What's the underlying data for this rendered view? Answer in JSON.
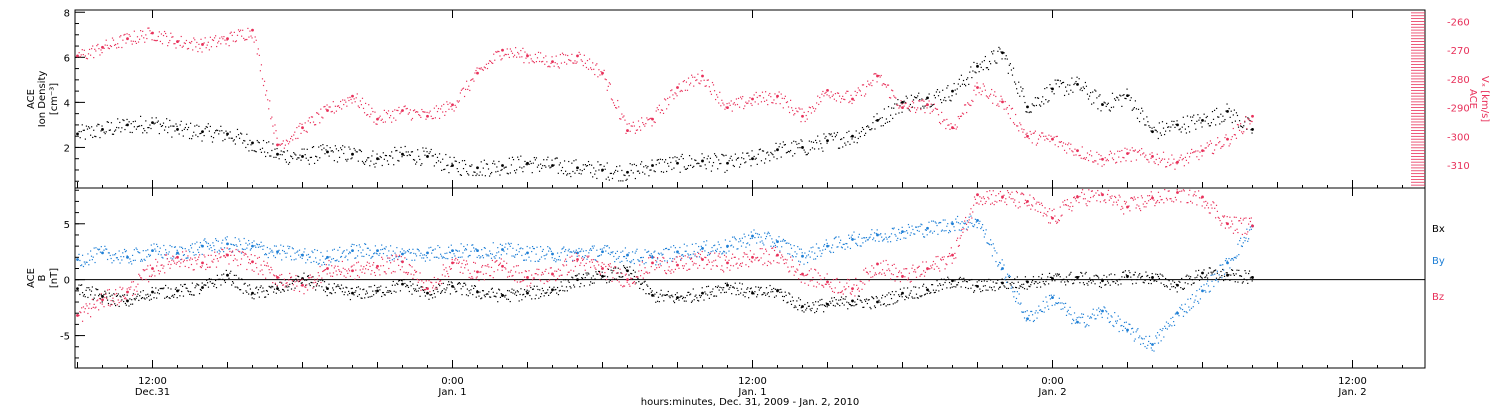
{
  "chart_data": [
    {
      "type": "scatter",
      "panel": "top",
      "xlabel": "hours:minutes, Dec. 31, 2009 - Jan. 2, 2010",
      "x_ticks": [
        {
          "time": "12:00",
          "date": "Dec.31",
          "hours": 12
        },
        {
          "time": "0:00",
          "date": "Jan. 1",
          "hours": 24
        },
        {
          "time": "12:00",
          "date": "Jan. 1",
          "hours": 36
        },
        {
          "time": "0:00",
          "date": "Jan. 2",
          "hours": 48
        },
        {
          "time": "12:00",
          "date": "Jan. 2",
          "hours": 60
        }
      ],
      "xlim": [
        8.9,
        62.9
      ],
      "y_left": {
        "label_lines": [
          "ACE",
          "Ion Density",
          "[cm⁻³]"
        ],
        "ticks": [
          2,
          4,
          6,
          8
        ],
        "ylim": [
          0.2,
          8.1
        ]
      },
      "y_right": {
        "label_lines": [
          "ACE",
          "Vₓ [km/s]"
        ],
        "ticks": [
          -260,
          -270,
          -280,
          -290,
          -300,
          -310
        ],
        "ylim": [
          -318,
          -256
        ]
      },
      "series": [
        {
          "axis": "left",
          "color": "#000000",
          "x": [
            9,
            10,
            11,
            12,
            13,
            14,
            15,
            16,
            17,
            18,
            19,
            20,
            21,
            22,
            23,
            24,
            25,
            26,
            27,
            28,
            29,
            30,
            31,
            32,
            33,
            34,
            35,
            36,
            37,
            38,
            39,
            40,
            41,
            42,
            43,
            44,
            45,
            46,
            47,
            48,
            49,
            50,
            51,
            52,
            53,
            54,
            55,
            56
          ],
          "y": [
            2.6,
            2.8,
            3.0,
            3.1,
            2.8,
            2.7,
            2.6,
            2.2,
            1.7,
            1.6,
            1.8,
            1.7,
            1.5,
            1.7,
            1.6,
            1.2,
            1.1,
            1.2,
            1.3,
            1.2,
            1.1,
            1.0,
            0.9,
            1.2,
            1.3,
            1.4,
            1.3,
            1.5,
            1.9,
            2.0,
            2.3,
            2.5,
            3.2,
            4.0,
            4.2,
            4.5,
            5.6,
            6.2,
            3.8,
            4.6,
            4.8,
            3.9,
            4.3,
            2.7,
            3.0,
            3.2,
            3.6,
            2.8
          ]
        },
        {
          "axis": "right",
          "color": "#e8305a",
          "x": [
            9,
            10,
            11,
            12,
            13,
            14,
            15,
            16,
            17,
            18,
            19,
            20,
            21,
            22,
            23,
            24,
            25,
            26,
            27,
            28,
            29,
            30,
            31,
            32,
            33,
            34,
            35,
            36,
            37,
            38,
            39,
            40,
            41,
            42,
            43,
            44,
            45,
            46,
            47,
            48,
            49,
            50,
            51,
            52,
            53,
            54,
            55,
            56
          ],
          "y": [
            -272,
            -269,
            -266,
            -264,
            -267,
            -268,
            -266,
            -263,
            -303,
            -297,
            -291,
            -286,
            -294,
            -291,
            -293,
            -289,
            -278,
            -270,
            -272,
            -274,
            -272,
            -278,
            -298,
            -294,
            -283,
            -279,
            -290,
            -287,
            -286,
            -293,
            -284,
            -287,
            -279,
            -290,
            -289,
            -297,
            -283,
            -288,
            -300,
            -301,
            -305,
            -308,
            -306,
            -307,
            -309,
            -305,
            -301,
            -293
          ]
        }
      ]
    },
    {
      "type": "scatter",
      "panel": "bottom",
      "xlim": [
        8.9,
        62.9
      ],
      "y_left": {
        "label_lines": [
          "ACE",
          "B",
          "[nT]"
        ],
        "ticks": [
          -5,
          0,
          5
        ],
        "ylim": [
          -7.9,
          8.2
        ]
      },
      "zero_line": true,
      "legend": [
        "Bx",
        "By",
        "Bz"
      ],
      "legend_placement": "right",
      "series": [
        {
          "name": "Bx",
          "color": "#000000",
          "x": [
            9,
            10,
            11,
            12,
            13,
            14,
            15,
            16,
            17,
            18,
            19,
            20,
            21,
            22,
            23,
            24,
            25,
            26,
            27,
            28,
            29,
            30,
            31,
            32,
            33,
            34,
            35,
            36,
            37,
            38,
            39,
            40,
            41,
            42,
            43,
            44,
            45,
            46,
            47,
            48,
            49,
            50,
            51,
            52,
            53,
            54,
            55,
            56
          ],
          "y": [
            -0.8,
            -1.5,
            -1.9,
            -1.1,
            -1.0,
            -0.7,
            0.4,
            -1.2,
            -0.8,
            0.1,
            -0.8,
            -1.2,
            -1.0,
            -0.4,
            -1.2,
            -0.6,
            -1.1,
            -1.4,
            -1.2,
            -0.9,
            0.0,
            0.3,
            0.8,
            -1.4,
            -1.6,
            -1.2,
            -0.5,
            -1.2,
            -1.0,
            -2.4,
            -2.2,
            -1.9,
            -2.0,
            -1.2,
            -0.9,
            -0.1,
            -0.6,
            -0.3,
            -0.2,
            0.1,
            0.2,
            -0.1,
            0.3,
            0.2,
            -0.5,
            0.6,
            0.4,
            0.2
          ]
        },
        {
          "name": "By",
          "color": "#1e7fd6",
          "x": [
            9,
            10,
            11,
            12,
            13,
            14,
            15,
            16,
            17,
            18,
            19,
            20,
            21,
            22,
            23,
            24,
            25,
            26,
            27,
            28,
            29,
            30,
            31,
            32,
            33,
            34,
            35,
            36,
            37,
            38,
            39,
            40,
            41,
            42,
            43,
            44,
            45,
            46,
            47,
            48,
            49,
            50,
            51,
            52,
            53,
            54,
            55,
            56
          ],
          "y": [
            1.8,
            2.4,
            2.0,
            2.6,
            2.4,
            3.0,
            3.2,
            3.0,
            2.5,
            2.2,
            2.0,
            2.6,
            2.6,
            2.3,
            2.4,
            2.6,
            2.6,
            2.7,
            2.4,
            2.3,
            2.4,
            2.5,
            2.2,
            2.0,
            2.5,
            2.8,
            3.0,
            3.9,
            3.4,
            2.1,
            3.0,
            3.6,
            4.0,
            4.3,
            4.6,
            5.0,
            5.3,
            1.0,
            -3.5,
            -1.6,
            -3.8,
            -2.8,
            -4.5,
            -5.8,
            -3.0,
            -1.0,
            1.5,
            4.8
          ]
        },
        {
          "name": "Bz",
          "color": "#e8305a",
          "x": [
            9,
            10,
            11,
            12,
            13,
            14,
            15,
            16,
            17,
            18,
            19,
            20,
            21,
            22,
            23,
            24,
            25,
            26,
            27,
            28,
            29,
            30,
            31,
            32,
            33,
            34,
            35,
            36,
            37,
            38,
            39,
            40,
            41,
            42,
            43,
            44,
            45,
            46,
            47,
            48,
            49,
            50,
            51,
            52,
            53,
            54,
            55,
            56
          ],
          "y": [
            -3.2,
            -1.8,
            -1.1,
            1.0,
            2.0,
            1.5,
            2.2,
            1.6,
            0.2,
            -0.5,
            1.0,
            0.8,
            1.2,
            1.6,
            -0.8,
            1.5,
            0.7,
            1.2,
            0.2,
            0.5,
            1.8,
            1.0,
            0.0,
            1.5,
            1.3,
            1.8,
            1.5,
            2.0,
            2.2,
            0.5,
            -0.2,
            -0.8,
            1.4,
            0.3,
            1.0,
            2.2,
            7.6,
            7.4,
            7.0,
            5.5,
            7.4,
            7.6,
            6.5,
            7.3,
            7.8,
            7.4,
            5.0,
            4.8
          ]
        }
      ]
    }
  ]
}
